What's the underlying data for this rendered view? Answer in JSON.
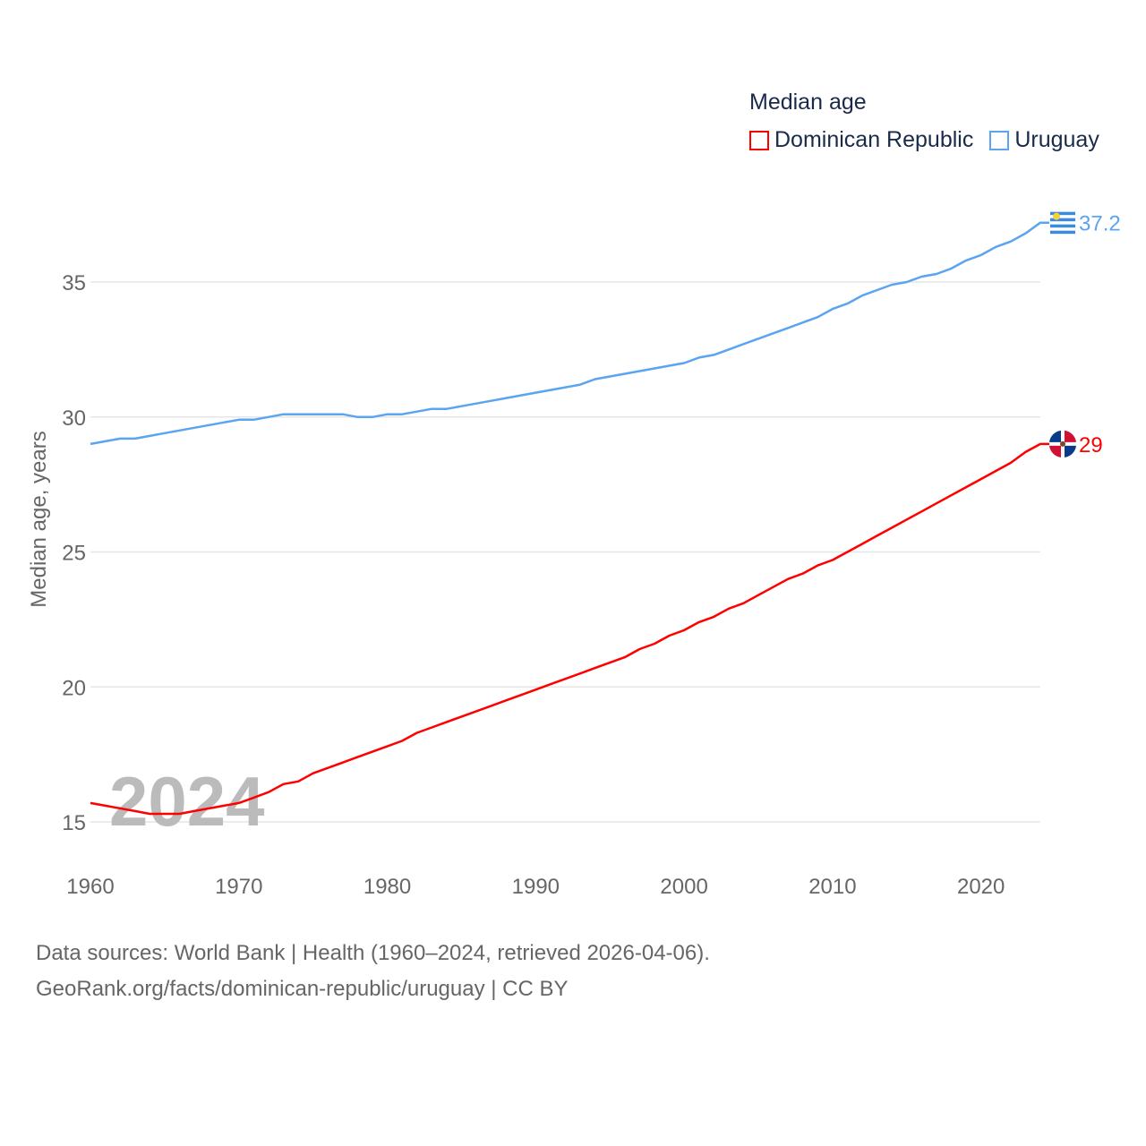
{
  "chart_data": {
    "type": "line",
    "title": "Median age",
    "xlabel": "",
    "ylabel": "Median age, years",
    "xlim": [
      1960,
      2024
    ],
    "ylim": [
      13.5,
      38.5
    ],
    "yticks": [
      15,
      20,
      25,
      30,
      35
    ],
    "xticks": [
      1960,
      1970,
      1980,
      1990,
      2000,
      2010,
      2020
    ],
    "grid": true,
    "legend_position": "top-right",
    "year_watermark": "2024",
    "x_start": 1960,
    "series": [
      {
        "name": "Dominican Republic",
        "color": "#ff0000",
        "end_label": "29",
        "values": [
          15.7,
          15.6,
          15.5,
          15.4,
          15.3,
          15.3,
          15.3,
          15.4,
          15.5,
          15.6,
          15.7,
          15.9,
          16.1,
          16.4,
          16.5,
          16.8,
          17.0,
          17.2,
          17.4,
          17.6,
          17.8,
          18.0,
          18.3,
          18.5,
          18.7,
          18.9,
          19.1,
          19.3,
          19.5,
          19.7,
          19.9,
          20.1,
          20.3,
          20.5,
          20.7,
          20.9,
          21.1,
          21.4,
          21.6,
          21.9,
          22.1,
          22.4,
          22.6,
          22.9,
          23.1,
          23.4,
          23.7,
          24.0,
          24.2,
          24.5,
          24.7,
          25.0,
          25.3,
          25.6,
          25.9,
          26.2,
          26.5,
          26.8,
          27.1,
          27.4,
          27.7,
          28.0,
          28.3,
          28.7,
          29.0
        ]
      },
      {
        "name": "Uruguay",
        "color": "#5ba4f0",
        "end_label": "37.2",
        "values": [
          29.0,
          29.1,
          29.2,
          29.2,
          29.3,
          29.4,
          29.5,
          29.6,
          29.7,
          29.8,
          29.9,
          29.9,
          30.0,
          30.1,
          30.1,
          30.1,
          30.1,
          30.1,
          30.0,
          30.0,
          30.1,
          30.1,
          30.2,
          30.3,
          30.3,
          30.4,
          30.5,
          30.6,
          30.7,
          30.8,
          30.9,
          31.0,
          31.1,
          31.2,
          31.4,
          31.5,
          31.6,
          31.7,
          31.8,
          31.9,
          32.0,
          32.2,
          32.3,
          32.5,
          32.7,
          32.9,
          33.1,
          33.3,
          33.5,
          33.7,
          34.0,
          34.2,
          34.5,
          34.7,
          34.9,
          35.0,
          35.2,
          35.3,
          35.5,
          35.8,
          36.0,
          36.3,
          36.5,
          36.8,
          37.2
        ]
      }
    ]
  },
  "source": {
    "line1": "Data sources: World Bank | Health (1960–2024, retrieved 2026-04-06).",
    "line2": "GeoRank.org/facts/dominican-republic/uruguay | CC BY"
  }
}
